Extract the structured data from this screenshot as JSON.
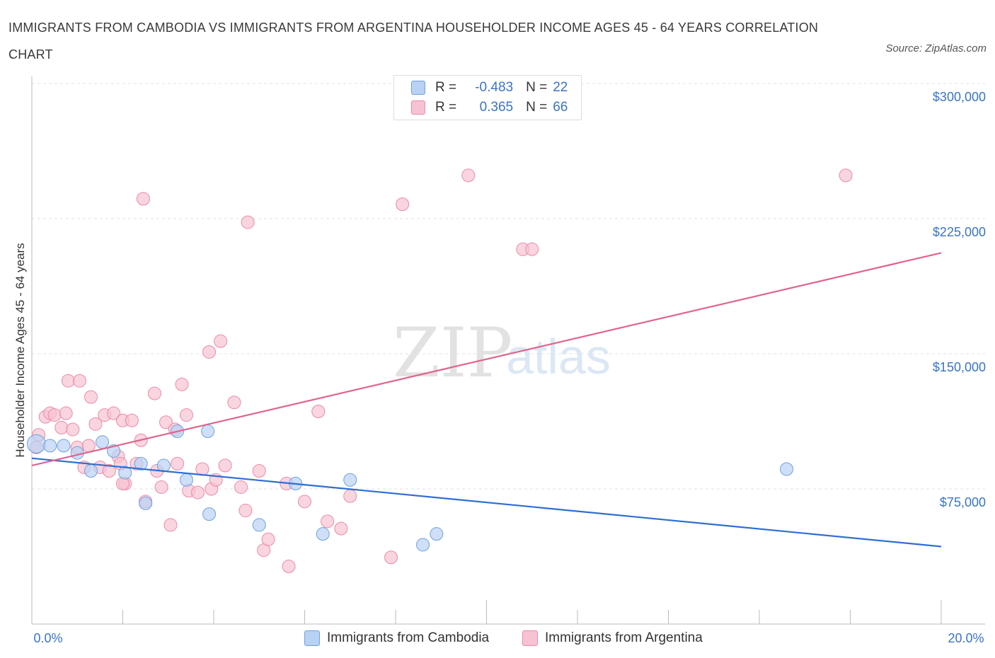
{
  "chart_data": {
    "type": "scatter",
    "title": "IMMIGRANTS FROM CAMBODIA VS IMMIGRANTS FROM ARGENTINA HOUSEHOLDER INCOME AGES 45 - 64 YEARS CORRELATION CHART",
    "source": "Source: ZipAtlas.com",
    "watermark": {
      "zip": "ZIP",
      "atlas": "atlas"
    },
    "xlabel": "",
    "ylabel": "Householder Income Ages 45 - 64 years",
    "x_tick_labels": {
      "min": "0.0%",
      "max": "20.0%"
    },
    "xlim": [
      0,
      20
    ],
    "ylim": [
      0,
      300000
    ],
    "y_ticks": [
      {
        "value": 75000,
        "label": "$75,000"
      },
      {
        "value": 150000,
        "label": "$150,000"
      },
      {
        "value": 225000,
        "label": "$225,000"
      },
      {
        "value": 300000,
        "label": "$300,000"
      }
    ],
    "grid": true,
    "legend": {
      "placement": "top-center",
      "rows": [
        {
          "r_label": "R =",
          "r_value": "-0.483",
          "n_label": "N =",
          "n_value": "22"
        },
        {
          "r_label": "R =",
          "r_value": "0.365",
          "n_label": "N =",
          "n_value": "66"
        }
      ]
    },
    "series": [
      {
        "name": "Immigrants from Cambodia",
        "color": "#6fa0e0",
        "fill": "#b9d1f3",
        "line_color": "#2e6fd2",
        "trend": {
          "x": [
            0,
            20
          ],
          "y": [
            92000,
            43000
          ]
        },
        "points": [
          [
            0.1,
            100000
          ],
          [
            0.4,
            99000
          ],
          [
            0.7,
            99000
          ],
          [
            1.0,
            95000
          ],
          [
            1.3,
            85000
          ],
          [
            1.55,
            101000
          ],
          [
            1.8,
            96000
          ],
          [
            2.05,
            84000
          ],
          [
            2.4,
            89000
          ],
          [
            2.5,
            67000
          ],
          [
            2.9,
            88000
          ],
          [
            3.2,
            107000
          ],
          [
            3.4,
            80000
          ],
          [
            3.87,
            107000
          ],
          [
            3.9,
            61000
          ],
          [
            5.0,
            55000
          ],
          [
            5.8,
            78000
          ],
          [
            6.4,
            50000
          ],
          [
            7.0,
            80000
          ],
          [
            8.6,
            44000
          ],
          [
            8.9,
            50000
          ],
          [
            16.6,
            86000
          ]
        ]
      },
      {
        "name": "Immigrants from Argentina",
        "color": "#ec8aa6",
        "fill": "#f6c3d2",
        "line_color": "#e0648c",
        "trend": {
          "x": [
            0,
            20
          ],
          "y": [
            88000,
            206000
          ]
        },
        "points": [
          [
            0.1,
            98000
          ],
          [
            0.15,
            105000
          ],
          [
            0.3,
            115000
          ],
          [
            0.4,
            117000
          ],
          [
            0.5,
            116000
          ],
          [
            0.65,
            109000
          ],
          [
            0.75,
            117000
          ],
          [
            0.8,
            135000
          ],
          [
            0.9,
            108000
          ],
          [
            1.0,
            98000
          ],
          [
            1.05,
            135000
          ],
          [
            1.15,
            87000
          ],
          [
            1.25,
            99000
          ],
          [
            1.3,
            126000
          ],
          [
            1.4,
            111000
          ],
          [
            1.5,
            87000
          ],
          [
            1.6,
            116000
          ],
          [
            1.7,
            85000
          ],
          [
            1.8,
            117000
          ],
          [
            1.9,
            93000
          ],
          [
            1.95,
            89000
          ],
          [
            2.0,
            113000
          ],
          [
            2.05,
            78000
          ],
          [
            2.2,
            113000
          ],
          [
            2.3,
            89000
          ],
          [
            2.4,
            102000
          ],
          [
            2.5,
            68000
          ],
          [
            2.7,
            128000
          ],
          [
            2.75,
            85000
          ],
          [
            2.85,
            76000
          ],
          [
            2.95,
            112000
          ],
          [
            3.05,
            55000
          ],
          [
            3.15,
            108000
          ],
          [
            3.2,
            89000
          ],
          [
            3.3,
            133000
          ],
          [
            3.4,
            116000
          ],
          [
            3.45,
            74000
          ],
          [
            3.65,
            73000
          ],
          [
            3.75,
            86000
          ],
          [
            3.9,
            151000
          ],
          [
            3.95,
            75000
          ],
          [
            4.05,
            80000
          ],
          [
            4.15,
            157000
          ],
          [
            4.25,
            88000
          ],
          [
            4.45,
            123000
          ],
          [
            4.6,
            76000
          ],
          [
            4.7,
            63000
          ],
          [
            5.0,
            85000
          ],
          [
            5.1,
            41000
          ],
          [
            5.2,
            47000
          ],
          [
            5.6,
            78000
          ],
          [
            5.65,
            32000
          ],
          [
            6.0,
            68000
          ],
          [
            6.3,
            118000
          ],
          [
            6.5,
            57000
          ],
          [
            6.8,
            53000
          ],
          [
            7.0,
            71000
          ],
          [
            7.9,
            37000
          ],
          [
            8.15,
            233000
          ],
          [
            9.6,
            249000
          ],
          [
            10.8,
            208000
          ],
          [
            11.0,
            208000
          ],
          [
            17.9,
            249000
          ],
          [
            2.45,
            236000
          ],
          [
            4.75,
            223000
          ],
          [
            2.0,
            78000
          ]
        ]
      }
    ]
  }
}
